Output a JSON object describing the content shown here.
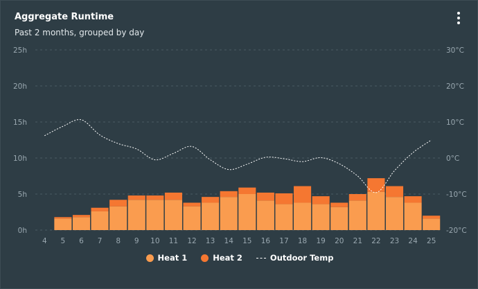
{
  "header": {
    "title": "Aggregate Runtime",
    "subtitle": "Past 2 months, grouped by day"
  },
  "menu_icon": "more-vertical-icon",
  "colors": {
    "background": "#2e3d45",
    "heat1": "#fa9c4f",
    "heat2": "#f57731",
    "temp_line": "#ffffff",
    "grid": "#4a5a62"
  },
  "legend": [
    {
      "name": "Heat 1",
      "marker": "dot"
    },
    {
      "name": "Heat 2",
      "marker": "dot"
    },
    {
      "name": "Outdoor Temp",
      "marker": "dashed-line"
    }
  ],
  "chart_data": {
    "type": "bar",
    "stacked": true,
    "title": "Aggregate Runtime",
    "subtitle": "Past 2 months, grouped by day",
    "x": [
      4,
      5,
      6,
      7,
      8,
      9,
      10,
      11,
      12,
      13,
      14,
      15,
      16,
      17,
      18,
      19,
      20,
      21,
      22,
      23,
      24,
      25
    ],
    "y_left": {
      "ticks": [
        "0h",
        "5h",
        "10h",
        "15h",
        "20h",
        "25h"
      ],
      "range": [
        0,
        25
      ],
      "unit": "hours"
    },
    "y_right": {
      "ticks": [
        "-20°C",
        "-10°C",
        "0°C",
        "10°C",
        "20°C",
        "30°C"
      ],
      "range": [
        -20,
        30
      ],
      "unit": "°C"
    },
    "grid": true,
    "legend_position": "bottom",
    "series": [
      {
        "name": "Heat 1",
        "kind": "bar",
        "axis": "left",
        "values": [
          null,
          1.6,
          1.8,
          2.6,
          3.3,
          4.2,
          4.2,
          4.2,
          3.3,
          3.8,
          4.6,
          5.0,
          4.1,
          3.6,
          3.8,
          3.6,
          3.2,
          4.1,
          5.3,
          4.6,
          3.8,
          1.6
        ]
      },
      {
        "name": "Heat 2",
        "kind": "bar",
        "axis": "left",
        "values": [
          null,
          0.2,
          0.3,
          0.5,
          0.9,
          0.6,
          0.6,
          1.0,
          0.5,
          0.8,
          0.8,
          0.9,
          1.1,
          1.5,
          2.3,
          1.1,
          0.6,
          0.9,
          1.9,
          1.5,
          0.9,
          0.4
        ]
      },
      {
        "name": "Outdoor Temp",
        "kind": "line",
        "style": "dashed",
        "axis": "right",
        "values": [
          6.2,
          8.8,
          10.6,
          6.4,
          4.0,
          2.5,
          -0.5,
          1.3,
          3.2,
          -0.5,
          -3.2,
          -1.7,
          0.2,
          -0.2,
          -1.0,
          0.1,
          -1.6,
          -5.0,
          -9.6,
          -3.5,
          1.5,
          5.0
        ]
      }
    ]
  }
}
